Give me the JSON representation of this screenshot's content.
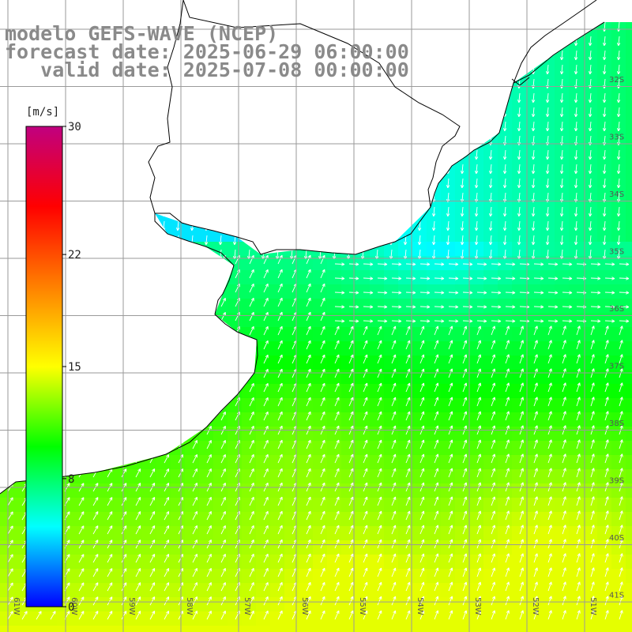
{
  "title": {
    "line1": "modelo GEFS-WAVE (NCEP)",
    "line2": "forecast date: 2025-06-29 06:00:00",
    "line3": "   valid date: 2025-07-08 00:00:00"
  },
  "colorbar": {
    "unit": "[m/s]",
    "ticks": [
      {
        "value": 30,
        "label": "30"
      },
      {
        "value": 22,
        "label": "22"
      },
      {
        "value": 15,
        "label": "15"
      },
      {
        "value": 8,
        "label": "8"
      },
      {
        "value": 0,
        "label": "0"
      }
    ],
    "range": [
      0,
      30
    ],
    "colors": [
      "#0000ff",
      "#00ffff",
      "#00ff00",
      "#ffff00",
      "#ff8000",
      "#ff0000",
      "#c00080"
    ]
  },
  "map": {
    "lat_labels": [
      "32S",
      "33S",
      "34S",
      "35S",
      "36S",
      "37S",
      "38S",
      "39S",
      "40S",
      "41S"
    ],
    "lon_labels": [
      "61W",
      "60W",
      "59W",
      "58W",
      "57W",
      "56W",
      "55W",
      "54W",
      "53W",
      "52W",
      "51W"
    ],
    "land_color": "#ffffff",
    "grid_color": "#9a9a9a",
    "coast_color": "#000000",
    "arrow_color": "#ffffff"
  }
}
